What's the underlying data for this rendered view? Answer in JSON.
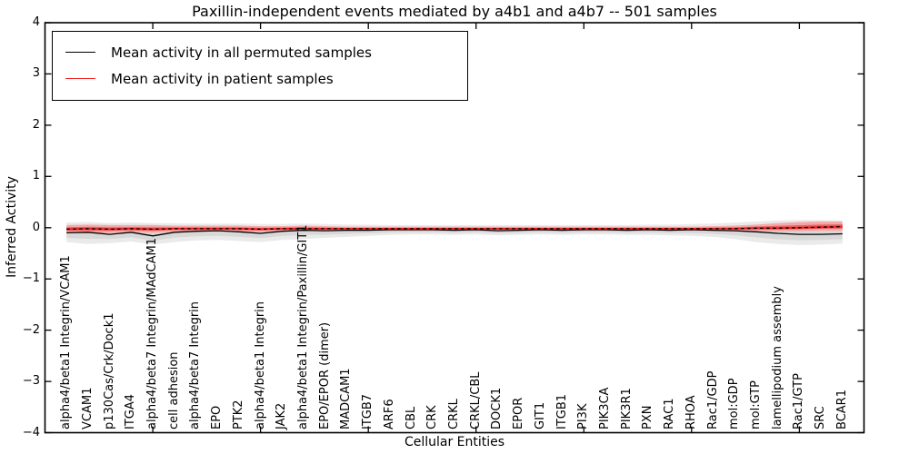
{
  "chart_data": {
    "type": "line",
    "title": "Paxillin-independent events mediated by a4b1 and a4b7 -- 501 samples",
    "xlabel": "Cellular Entities",
    "ylabel": "Inferred Activity",
    "ylim": [
      -4,
      4
    ],
    "y_tick_labels": [
      "4",
      "3",
      "2",
      "1",
      "0",
      "−1",
      "−2",
      "−3",
      "−4"
    ],
    "y_tick_values": [
      4,
      3,
      2,
      1,
      0,
      -1,
      -2,
      -3,
      -4
    ],
    "x_major_ticks": [
      5,
      10,
      15,
      20,
      25,
      30,
      35
    ],
    "legend_position": "upper left",
    "grid": false,
    "categories": [
      "alpha4/beta1 Integrin/VCAM1",
      "VCAM1",
      "p130Cas/Crk/Dock1",
      "ITGA4",
      "alpha4/beta7 Integrin/MAdCAM1",
      "cell adhesion",
      "alpha4/beta7 Integrin",
      "EPO",
      "PTK2",
      "alpha4/beta1 Integrin",
      "JAK2",
      "alpha4/beta1 Integrin/Paxillin/GIT1",
      "EPO/EPOR (dimer)",
      "MADCAM1",
      "ITGB7",
      "ARF6",
      "CBL",
      "CRK",
      "CRKL",
      "CRKL/CBL",
      "DOCK1",
      "EPOR",
      "GIT1",
      "ITGB1",
      "PI3K",
      "PIK3CA",
      "PIK3R1",
      "PXN",
      "RAC1",
      "RHOA",
      "Rac1/GDP",
      "mol:GDP",
      "mol:GTP",
      "lamellipodium assembly",
      "Rac1/GTP",
      "SRC",
      "BCAR1"
    ],
    "series": [
      {
        "name": "Mean activity in all permuted samples",
        "color": "#000000",
        "values": [
          -0.1,
          -0.09,
          -0.13,
          -0.09,
          -0.16,
          -0.09,
          -0.07,
          -0.06,
          -0.08,
          -0.11,
          -0.07,
          -0.05,
          -0.06,
          -0.05,
          -0.05,
          -0.04,
          -0.04,
          -0.04,
          -0.05,
          -0.04,
          -0.06,
          -0.05,
          -0.04,
          -0.05,
          -0.04,
          -0.04,
          -0.05,
          -0.04,
          -0.05,
          -0.04,
          -0.05,
          -0.06,
          -0.08,
          -0.11,
          -0.13,
          -0.13,
          -0.12
        ]
      },
      {
        "name": "Mean activity in patient samples",
        "color": "#f02020",
        "overlay": "black-dashed",
        "values": [
          -0.03,
          -0.02,
          -0.03,
          -0.02,
          -0.03,
          -0.02,
          -0.02,
          -0.02,
          -0.02,
          -0.03,
          -0.02,
          -0.02,
          -0.02,
          -0.02,
          -0.02,
          -0.02,
          -0.02,
          -0.02,
          -0.02,
          -0.02,
          -0.02,
          -0.02,
          -0.02,
          -0.02,
          -0.02,
          -0.02,
          -0.02,
          -0.02,
          -0.02,
          -0.02,
          -0.02,
          -0.02,
          -0.01,
          -0.01,
          0.0,
          0.01,
          0.02
        ]
      }
    ],
    "bands": {
      "permuted_upper": [
        0.1,
        0.11,
        0.09,
        0.1,
        0.09,
        0.09,
        0.08,
        0.08,
        0.08,
        0.07,
        0.07,
        0.08,
        0.07,
        0.06,
        0.06,
        0.05,
        0.05,
        0.05,
        0.05,
        0.05,
        0.05,
        0.05,
        0.05,
        0.05,
        0.05,
        0.05,
        0.05,
        0.06,
        0.06,
        0.07,
        0.08,
        0.1,
        0.12,
        0.14,
        0.15,
        0.15,
        0.14
      ],
      "permuted_lower": [
        -0.28,
        -0.32,
        -0.3,
        -0.27,
        -0.33,
        -0.28,
        -0.25,
        -0.24,
        -0.26,
        -0.28,
        -0.24,
        -0.22,
        -0.2,
        -0.18,
        -0.16,
        -0.14,
        -0.13,
        -0.13,
        -0.14,
        -0.13,
        -0.15,
        -0.14,
        -0.13,
        -0.14,
        -0.13,
        -0.13,
        -0.14,
        -0.14,
        -0.15,
        -0.16,
        -0.18,
        -0.22,
        -0.28,
        -0.32,
        -0.34,
        -0.33,
        -0.31
      ],
      "patient_upper": [
        0.05,
        0.06,
        0.05,
        0.05,
        0.05,
        0.04,
        0.04,
        0.04,
        0.04,
        0.03,
        0.03,
        0.04,
        0.03,
        0.02,
        0.02,
        0.02,
        0.02,
        0.02,
        0.02,
        0.02,
        0.02,
        0.02,
        0.02,
        0.02,
        0.02,
        0.02,
        0.02,
        0.02,
        0.02,
        0.02,
        0.03,
        0.04,
        0.06,
        0.09,
        0.11,
        0.12,
        0.12
      ],
      "patient_lower": [
        -0.1,
        -0.11,
        -0.1,
        -0.09,
        -0.1,
        -0.08,
        -0.08,
        -0.07,
        -0.08,
        -0.08,
        -0.07,
        -0.07,
        -0.06,
        -0.06,
        -0.06,
        -0.06,
        -0.06,
        -0.06,
        -0.06,
        -0.06,
        -0.06,
        -0.06,
        -0.06,
        -0.06,
        -0.06,
        -0.06,
        -0.06,
        -0.06,
        -0.06,
        -0.06,
        -0.06,
        -0.07,
        -0.07,
        -0.07,
        -0.07,
        -0.06,
        -0.06
      ],
      "inner_band_fraction": 0.55,
      "core_band_fraction": 0.45
    },
    "colors": {
      "permuted_band_outer": "#eaeaea",
      "permuted_band_inner": "#d8d8d8",
      "patient_band_outer": "#f5a8a8",
      "patient_band_core": "#e56060",
      "permuted_line": "#000000",
      "patient_line": "#f02020",
      "overlay_dash": "#000000",
      "frame": "#000000"
    }
  }
}
